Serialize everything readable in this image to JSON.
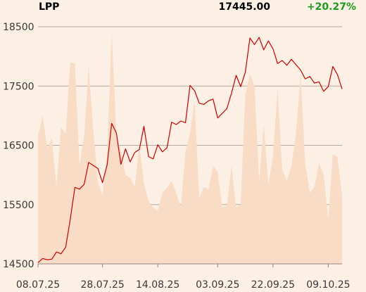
{
  "header": {
    "ticker": "LPP",
    "price": "17445.00",
    "change": "+20.27%"
  },
  "colors": {
    "background": "#fcefe3",
    "price_line": "#cc0000",
    "volume_area": "#f8dcc6",
    "change_positive": "#1a9e1a",
    "grid": "#b3aaa2"
  },
  "chart_data": {
    "type": "line",
    "title": "LPP",
    "xlabel": "",
    "ylabel": "",
    "ylim": [
      14500,
      18500
    ],
    "y_ticks": [
      "18500",
      "17500",
      "16500",
      "15500",
      "14500"
    ],
    "y_tick_values": [
      18500,
      17500,
      16500,
      15500,
      14500
    ],
    "x_ticks": [
      "08.07.25",
      "28.07.25",
      "14.08.25",
      "03.09.25",
      "22.09.25",
      "09.10.25"
    ],
    "x_tick_index": [
      0,
      14,
      26,
      39,
      51,
      63
    ],
    "grid": true,
    "series": [
      {
        "kind": "price",
        "values": [
          14520,
          14590,
          14570,
          14580,
          14700,
          14670,
          14780,
          15250,
          15790,
          15760,
          15840,
          16210,
          16160,
          16110,
          15870,
          16170,
          16870,
          16710,
          16180,
          16440,
          16220,
          16380,
          16430,
          16820,
          16310,
          16270,
          16510,
          16390,
          16460,
          16890,
          16850,
          16910,
          16880,
          17510,
          17420,
          17210,
          17190,
          17250,
          17280,
          16960,
          17040,
          17120,
          17380,
          17680,
          17490,
          17730,
          18310,
          18200,
          18320,
          18110,
          18260,
          18130,
          17880,
          17930,
          17850,
          17950,
          17860,
          17770,
          17620,
          17660,
          17550,
          17570,
          17410,
          17490,
          17830,
          17690,
          17450
        ]
      },
      {
        "kind": "volume",
        "values": [
          16650,
          17000,
          16450,
          16620,
          15800,
          16800,
          16700,
          17900,
          17880,
          16150,
          16650,
          17820,
          16750,
          15900,
          15650,
          16350,
          18400,
          16700,
          16400,
          16000,
          15950,
          15800,
          16500,
          15850,
          15550,
          15450,
          15400,
          15700,
          15780,
          15900,
          15700,
          15450,
          16400,
          16700,
          17250,
          15600,
          15800,
          15750,
          16150,
          16050,
          15450,
          15480,
          16150,
          15450,
          15500,
          17350,
          17700,
          17500,
          15900,
          16850,
          15850,
          16300,
          17450,
          16100,
          15900,
          16150,
          16700,
          17680,
          16200,
          15700,
          15800,
          16200,
          16000,
          15250,
          16350,
          16300,
          15650
        ]
      }
    ]
  }
}
